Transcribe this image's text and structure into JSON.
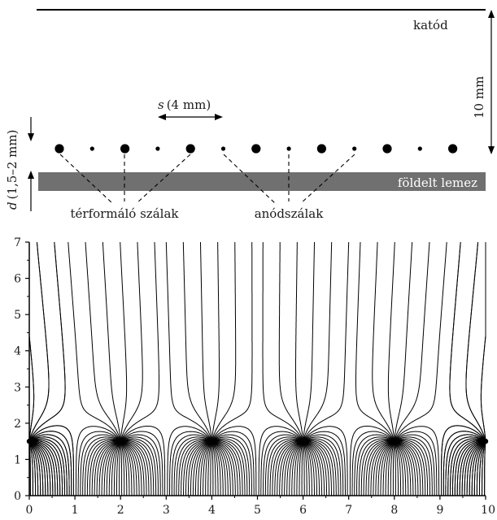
{
  "schematic": {
    "cathode_label": "katód",
    "height_label": "10 mm",
    "spacing_symbol": "s",
    "spacing_value": "(4 mm)",
    "gap_symbol": "d",
    "gap_value": "(1,5–2 mm)",
    "plate_label": "földelt lemez",
    "field_wires_label": "térformáló szálak",
    "anode_wires_label": "anódszálak",
    "wires": [
      "field",
      "anode",
      "field",
      "anode",
      "field",
      "anode",
      "field",
      "anode",
      "field",
      "anode",
      "field",
      "anode",
      "field"
    ]
  },
  "chart_data": {
    "type": "field-lines",
    "xlim": [
      0,
      10
    ],
    "ylim": [
      0,
      7
    ],
    "x_ticks": [
      "0",
      "1",
      "2",
      "3",
      "4",
      "5",
      "6",
      "7",
      "8",
      "9",
      "10"
    ],
    "y_ticks": [
      "0",
      "1",
      "2",
      "3",
      "4",
      "5",
      "6",
      "7"
    ],
    "anode_wires_x": [
      0,
      2,
      4,
      6,
      8,
      10
    ],
    "wire_y": 1.5,
    "cathode_y": 10,
    "ground_y": 0
  },
  "colors": {
    "ink": "#000000",
    "plate": "#707070"
  }
}
